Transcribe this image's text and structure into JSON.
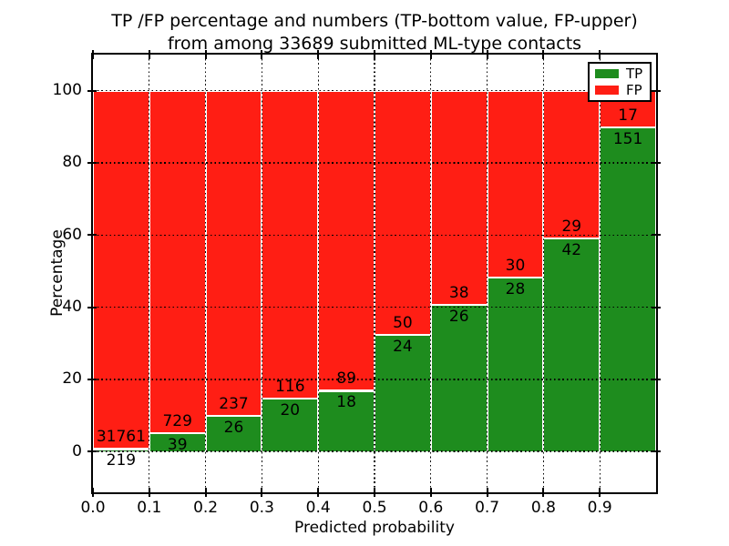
{
  "title": {
    "line1": "TP /FP percentage and numbers (TP-bottom value, FP-upper)",
    "line2": "from among 33689 submitted ML-type contacts"
  },
  "axes": {
    "xlabel": "Predicted probability",
    "ylabel": "Percentage"
  },
  "chart_data": {
    "type": "bar",
    "subtype": "stacked-percentage",
    "title": "TP /FP percentage and numbers (TP-bottom value, FP-upper)\nfrom among 33689 submitted ML-type contacts",
    "total_contacts": 33689,
    "xlabel": "Predicted probability",
    "ylabel": "Percentage",
    "categories": [
      "0.0",
      "0.1",
      "0.2",
      "0.3",
      "0.4",
      "0.5",
      "0.6",
      "0.7",
      "0.8",
      "0.9"
    ],
    "x_tick_labels": [
      "0.0",
      "0.1",
      "0.2",
      "0.3",
      "0.4",
      "0.5",
      "0.6",
      "0.7",
      "0.8",
      "0.9"
    ],
    "y_ticks": [
      0,
      20,
      40,
      60,
      80,
      100
    ],
    "ylim": [
      -11.3,
      110
    ],
    "xlim": [
      0.0,
      1.0
    ],
    "bin_width": 0.1,
    "series": [
      {
        "name": "TP",
        "color": "#1E8C1E",
        "values": [
          219,
          39,
          26,
          20,
          18,
          24,
          26,
          28,
          42,
          151
        ]
      },
      {
        "name": "FP",
        "color": "#FF1E14",
        "values": [
          31761,
          729,
          237,
          116,
          89,
          50,
          38,
          30,
          29,
          17
        ]
      }
    ],
    "tp_percent": [
      0.68,
      5.08,
      9.89,
      14.71,
      16.82,
      32.43,
      40.63,
      48.28,
      59.15,
      89.88
    ],
    "bar_edge_color": "#FFFFFF",
    "grid": {
      "visible": true,
      "style": "dotted",
      "color": "#000000"
    },
    "legend": {
      "position": "upper-right",
      "entries": [
        "TP",
        "FP"
      ]
    }
  }
}
